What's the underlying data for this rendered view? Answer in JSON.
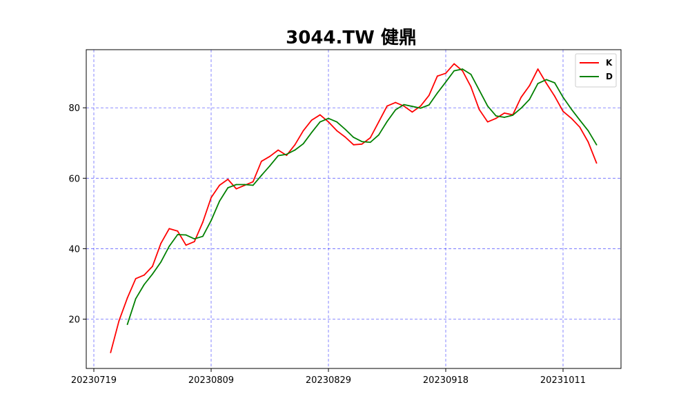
{
  "chart_data": {
    "type": "line",
    "title": "3044.TW 健鼎",
    "xlabel": "",
    "ylabel": "",
    "ylim": [
      6,
      96.5
    ],
    "grid": true,
    "grid_color": "#0000ff",
    "legend_position": "top-right",
    "x_tick_labels": [
      {
        "label": "20230719",
        "index": 0
      },
      {
        "label": "20230809",
        "index": 14
      },
      {
        "label": "20230829",
        "index": 28
      },
      {
        "label": "20230918",
        "index": 42
      },
      {
        "label": "20231011",
        "index": 56
      }
    ],
    "y_ticks": [
      20,
      40,
      60,
      80
    ],
    "x": [
      "20230719",
      "20230720",
      "20230721",
      "20230724",
      "20230725",
      "20230726",
      "20230727",
      "20230728",
      "20230731",
      "20230801",
      "20230802",
      "20230803",
      "20230804",
      "20230807",
      "20230809",
      "20230810",
      "20230811",
      "20230814",
      "20230815",
      "20230816",
      "20230817",
      "20230818",
      "20230821",
      "20230822",
      "20230823",
      "20230824",
      "20230825",
      "20230828",
      "20230829",
      "20230830",
      "20230831",
      "20230901",
      "20230904",
      "20230905",
      "20230906",
      "20230907",
      "20230908",
      "20230911",
      "20230912",
      "20230913",
      "20230914",
      "20230915",
      "20230918",
      "20230919",
      "20230920",
      "20230921",
      "20230922",
      "20230925",
      "20230926",
      "20230927",
      "20230928",
      "20231002",
      "20231003",
      "20231004",
      "20231005",
      "20231006",
      "20231011",
      "20231012",
      "20231013",
      "20231016",
      "20231017"
    ],
    "series": [
      {
        "name": "K",
        "color": "#ff0000",
        "values": [
          null,
          null,
          10.5,
          19.5,
          26,
          31.5,
          32.5,
          35,
          41.5,
          45.7,
          45,
          41,
          42,
          47.5,
          54.5,
          58,
          59.7,
          57,
          58,
          59,
          64.8,
          66.2,
          68,
          66.5,
          69.5,
          73.5,
          76.5,
          78,
          76,
          73.5,
          71.7,
          69.5,
          69.7,
          71.5,
          76,
          80.5,
          81.5,
          80.5,
          78.8,
          80.5,
          83.5,
          89,
          89.8,
          92.5,
          90.5,
          86,
          79.5,
          76,
          77,
          78.5,
          78,
          83,
          86.3,
          91,
          87,
          83.3,
          79,
          77,
          74.5,
          70.3,
          64.3
        ]
      },
      {
        "name": "D",
        "color": "#008000",
        "values": [
          null,
          null,
          null,
          null,
          18.5,
          25.8,
          29.8,
          32.8,
          36.2,
          40.7,
          44,
          43.9,
          42.8,
          43.5,
          48,
          53.5,
          57.3,
          58.2,
          58.2,
          58,
          60.8,
          63.5,
          66.4,
          66.8,
          68,
          69.8,
          73,
          76,
          77,
          76,
          73.9,
          71.6,
          70.4,
          70.2,
          72.3,
          76.1,
          79.4,
          80.9,
          80.4,
          79.9,
          80.8,
          84.2,
          87.3,
          90.5,
          91,
          89.5,
          85,
          80.5,
          77.7,
          77.3,
          77.9,
          79.9,
          82.4,
          86.9,
          88,
          87.1,
          83,
          79.6,
          76.5,
          73.5,
          69.5
        ]
      }
    ]
  }
}
